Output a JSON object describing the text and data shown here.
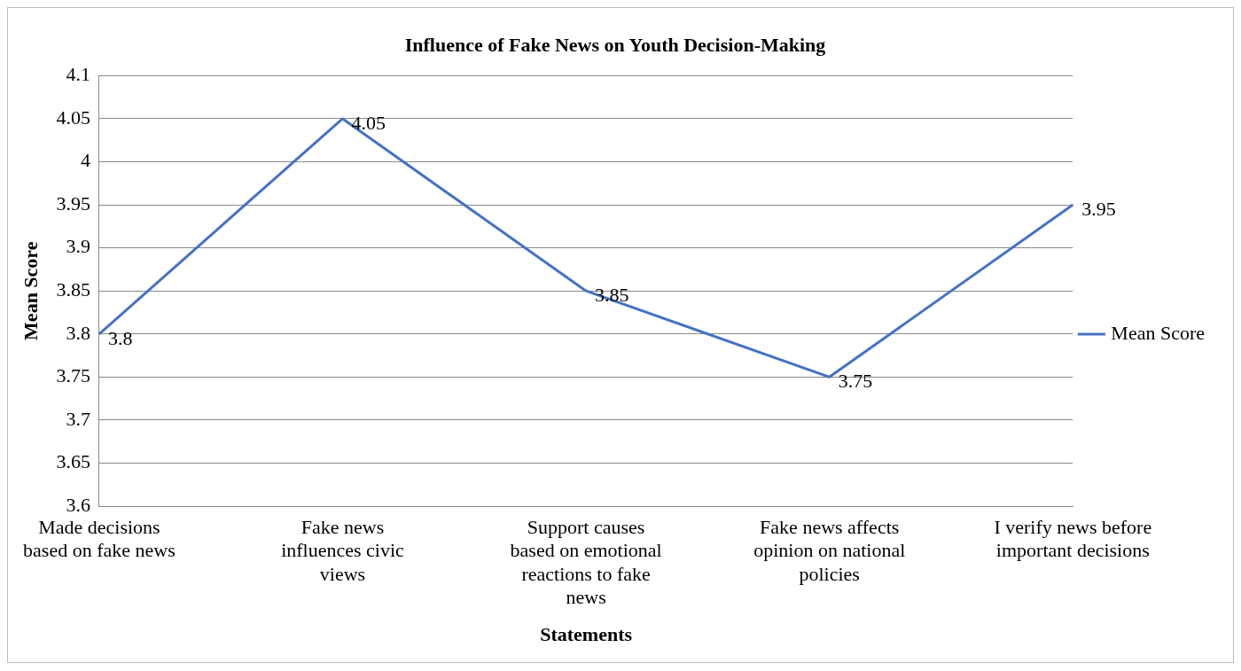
{
  "chart_data": {
    "type": "line",
    "title": "Influence of Fake News on Youth Decision-Making",
    "xlabel": "Statements",
    "ylabel": "Mean Score",
    "categories": [
      "Made decisions based on fake news",
      "Fake news influences civic views",
      "Support causes based on emotional reactions to fake news",
      "Fake news affects opinion on national policies",
      "I verify news before important decisions"
    ],
    "series": [
      {
        "name": "Mean Score",
        "color": "#4472c4",
        "values": [
          3.8,
          4.05,
          3.85,
          3.75,
          3.95
        ]
      }
    ],
    "ylim": [
      3.6,
      4.1
    ],
    "yticks": [
      3.6,
      3.65,
      3.7,
      3.75,
      3.8,
      3.85,
      3.9,
      3.95,
      4,
      4.05,
      4.1
    ],
    "grid": "y",
    "legend": "right",
    "marker": "none",
    "line_style": "solid",
    "data_labels": true
  }
}
